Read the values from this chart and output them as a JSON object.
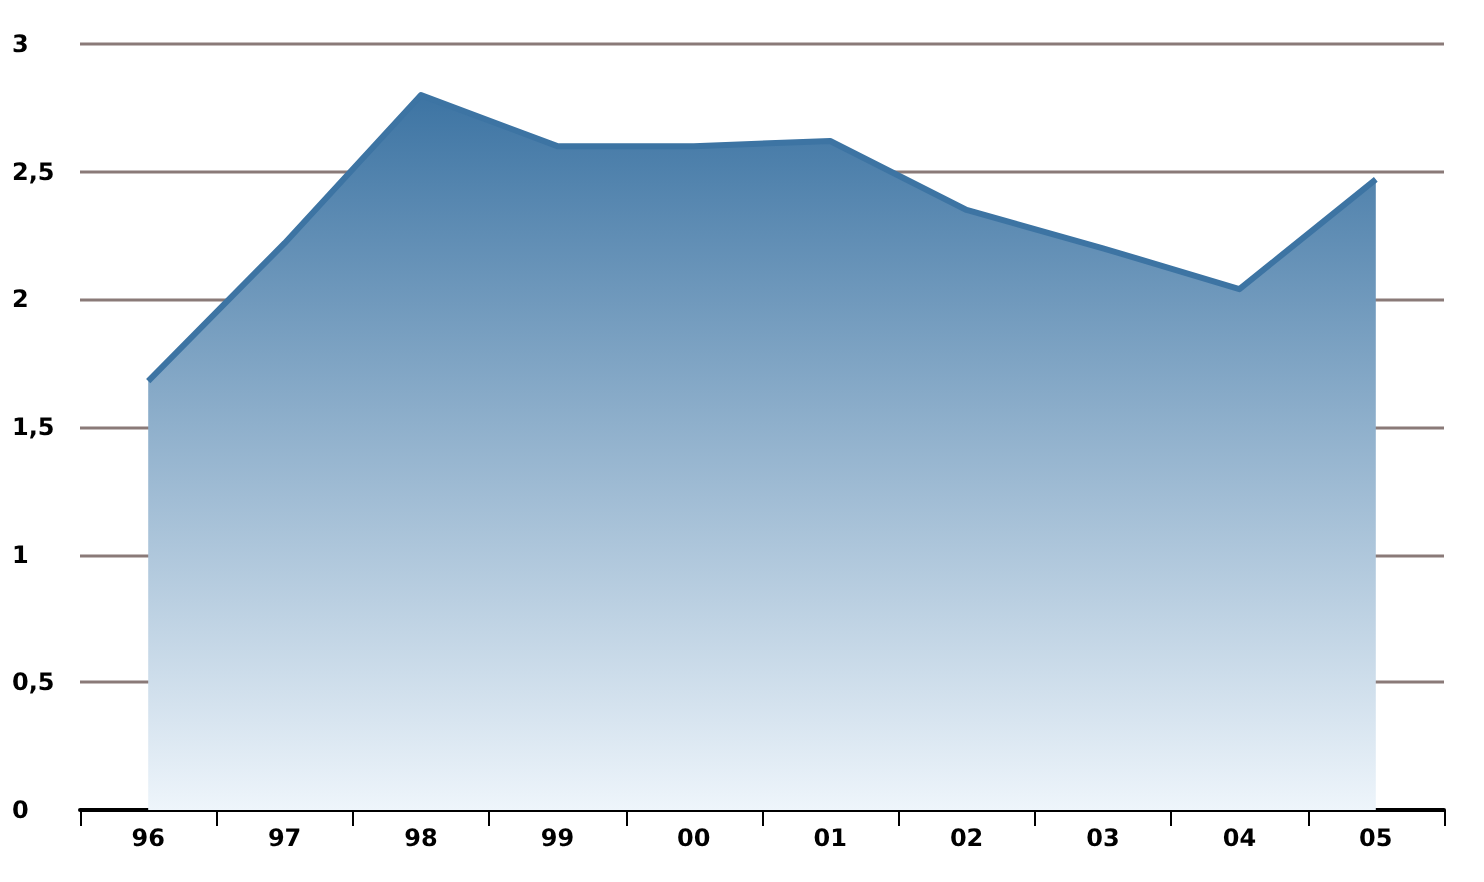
{
  "chart_data": {
    "type": "area",
    "categories": [
      "96",
      "97",
      "98",
      "99",
      "00",
      "01",
      "02",
      "03",
      "04",
      "05"
    ],
    "series": [
      {
        "color": "#3d74a3",
        "values": [
          1.68,
          2.22,
          2.8,
          2.6,
          2.6,
          2.62,
          2.35,
          2.2,
          2.04,
          2.47
        ]
      }
    ],
    "ylim": [
      0,
      3
    ],
    "yticks": [
      0,
      {
        "value": 0.5,
        "label": "0,5"
      },
      1,
      {
        "value": 1.5,
        "label": "1,5"
      },
      2,
      {
        "value": 2.5,
        "label": "2,5"
      },
      3
    ],
    "grid": "y",
    "marker": "none",
    "line_style": "solid"
  }
}
